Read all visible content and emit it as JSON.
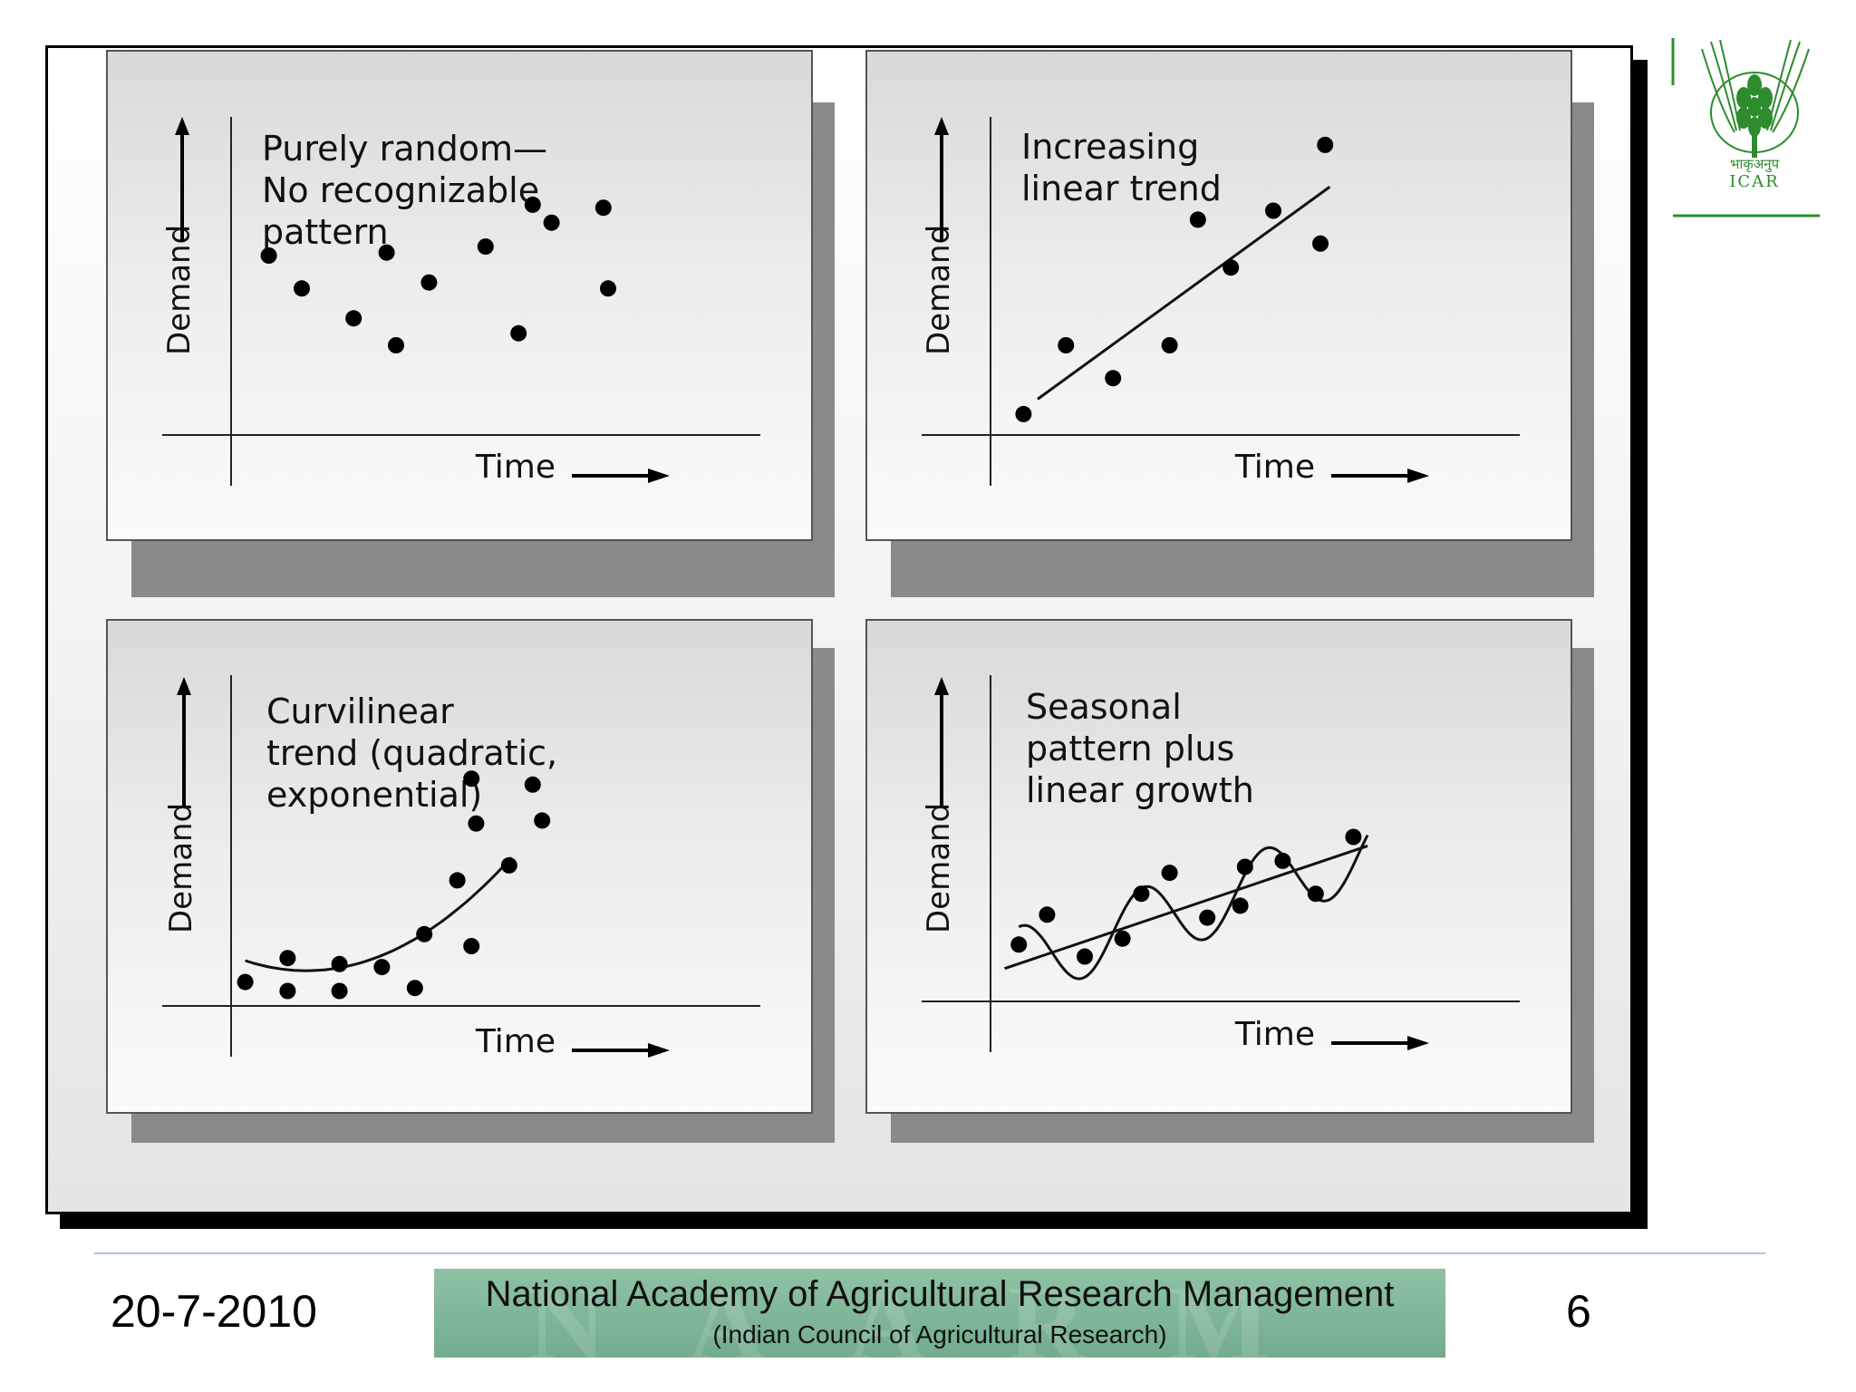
{
  "chart_data": [
    {
      "type": "scatter",
      "title": "Purely random— No recognizable pattern",
      "title_lines": [
        "Purely random—",
        "No recognizable",
        "pattern"
      ],
      "xlabel": "Time",
      "ylabel": "Demand",
      "xlim": [
        0,
        10
      ],
      "ylim": [
        0,
        10
      ],
      "points": [
        [
          0.8,
          6.0
        ],
        [
          1.5,
          4.9
        ],
        [
          2.6,
          3.9
        ],
        [
          3.3,
          6.1
        ],
        [
          3.5,
          3.0
        ],
        [
          4.2,
          5.1
        ],
        [
          5.4,
          6.3
        ],
        [
          6.1,
          3.4
        ],
        [
          6.4,
          7.7
        ],
        [
          6.8,
          7.1
        ],
        [
          7.9,
          7.6
        ],
        [
          8.0,
          4.9
        ]
      ],
      "fit": null,
      "grid": false
    },
    {
      "type": "scatter",
      "title": "Increasing linear trend",
      "title_lines": [
        "Increasing",
        "linear trend"
      ],
      "xlabel": "Time",
      "ylabel": "Demand",
      "xlim": [
        0,
        10
      ],
      "ylim": [
        0,
        10
      ],
      "points": [
        [
          0.7,
          0.7
        ],
        [
          1.6,
          3.0
        ],
        [
          2.6,
          1.9
        ],
        [
          3.8,
          3.0
        ],
        [
          4.4,
          7.2
        ],
        [
          5.1,
          5.6
        ],
        [
          6.0,
          7.5
        ],
        [
          7.0,
          6.4
        ],
        [
          7.1,
          9.7
        ]
      ],
      "fit": {
        "kind": "linear",
        "x": [
          1.0,
          7.2
        ],
        "y": [
          1.2,
          8.3
        ]
      },
      "grid": false
    },
    {
      "type": "scatter",
      "title": "Curvilinear trend (quadratic, exponential)",
      "title_lines": [
        "Curvilinear",
        "trend (quadratic,",
        "exponential)"
      ],
      "xlabel": "Time",
      "ylabel": "Demand",
      "xlim": [
        0,
        10
      ],
      "ylim": [
        0,
        10
      ],
      "points": [
        [
          0.3,
          0.8
        ],
        [
          1.2,
          1.6
        ],
        [
          1.2,
          0.5
        ],
        [
          2.3,
          1.4
        ],
        [
          2.3,
          0.5
        ],
        [
          3.2,
          1.3
        ],
        [
          3.9,
          0.6
        ],
        [
          4.1,
          2.4
        ],
        [
          4.8,
          4.2
        ],
        [
          5.1,
          2.0
        ],
        [
          5.1,
          7.6
        ],
        [
          5.2,
          6.1
        ],
        [
          5.9,
          4.7
        ],
        [
          6.4,
          7.4
        ],
        [
          6.6,
          6.2
        ]
      ],
      "fit": {
        "kind": "quadratic",
        "a": 0.2,
        "b": -0.64,
        "c": 1.69,
        "x": [
          0.3,
          5.95
        ]
      },
      "grid": false
    },
    {
      "type": "scatter",
      "title": "Seasonal pattern plus linear growth",
      "title_lines": [
        "Seasonal",
        "pattern plus",
        "linear growth"
      ],
      "xlabel": "Time",
      "ylabel": "Demand",
      "xlim": [
        0,
        10
      ],
      "ylim": [
        0,
        10
      ],
      "points": [
        [
          0.6,
          1.9
        ],
        [
          1.2,
          2.9
        ],
        [
          2.0,
          1.5
        ],
        [
          2.8,
          2.1
        ],
        [
          3.2,
          3.6
        ],
        [
          3.8,
          4.3
        ],
        [
          4.6,
          2.8
        ],
        [
          5.3,
          3.2
        ],
        [
          5.4,
          4.5
        ],
        [
          6.2,
          4.7
        ],
        [
          6.9,
          3.6
        ],
        [
          7.7,
          5.5
        ]
      ],
      "fit": {
        "kind": "seasonal",
        "intercept": 1.0,
        "slope": 0.5,
        "amplitude": 1.2,
        "period": 2.6,
        "phase": 0.0,
        "x": [
          0.6,
          8.0
        ]
      },
      "trend": {
        "x": [
          0.3,
          8.0
        ],
        "y": [
          1.1,
          5.2
        ]
      },
      "grid": false
    }
  ],
  "logo": {
    "text_hindi": "भाकृअनुप",
    "text_latin": "ICAR",
    "color": "#2e8b2e"
  },
  "footer": {
    "date": "20-7-2010",
    "title": "National Academy of Agricultural Research Management",
    "subtitle": "(Indian Council of Agricultural Research)",
    "watermark": "NAARM",
    "page": "6"
  }
}
